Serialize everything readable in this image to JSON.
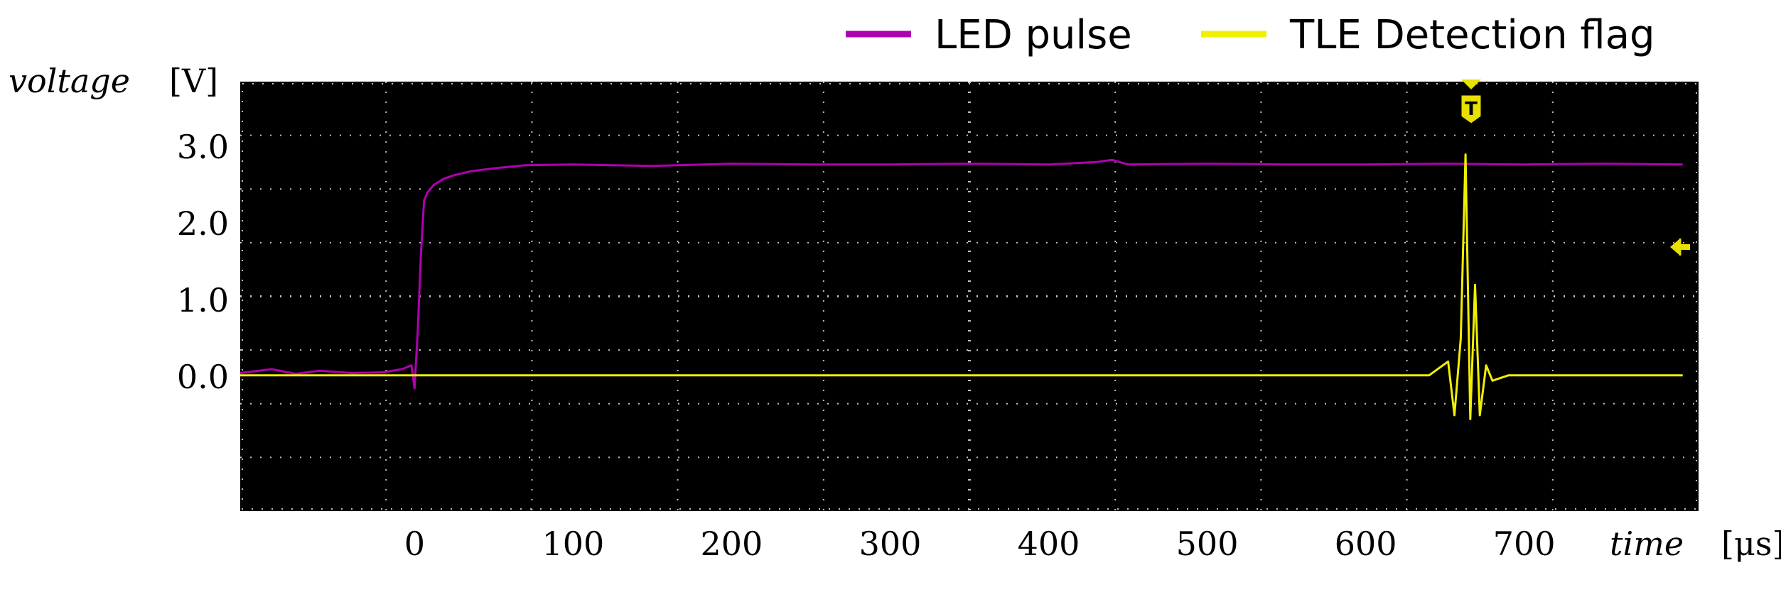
{
  "chart_data": {
    "type": "line",
    "title": "",
    "xlabel": "time",
    "xlabel_unit": "[μs]",
    "ylabel": "voltage",
    "ylabel_unit": "[V]",
    "xlim": [
      -110,
      810
    ],
    "ylim": [
      -1.75,
      3.85
    ],
    "x_ticks": [
      0,
      100,
      200,
      300,
      400,
      500,
      600,
      700
    ],
    "x_tick_labels": [
      "0",
      "100",
      "200",
      "300",
      "400",
      "500",
      "600",
      "700"
    ],
    "y_ticks": [
      0,
      1,
      2,
      3
    ],
    "y_tick_labels": [
      "0.0",
      "1.0",
      "2.0",
      "3.0"
    ],
    "grid": true,
    "background": "#000000",
    "legend_position": "top-right",
    "series": [
      {
        "name": "LED pulse",
        "color": "#b000b0",
        "x": [
          -110,
          -90,
          -75,
          -60,
          -40,
          -20,
          -8,
          -2,
          0,
          2,
          4,
          6,
          8,
          12,
          18,
          25,
          35,
          50,
          70,
          100,
          150,
          200,
          250,
          300,
          350,
          400,
          430,
          440,
          450,
          500,
          550,
          600,
          650,
          700,
          750,
          800
        ],
        "y": [
          0.05,
          0.1,
          0.04,
          0.08,
          0.05,
          0.06,
          0.1,
          0.15,
          -0.15,
          0.6,
          1.6,
          2.3,
          2.4,
          2.5,
          2.58,
          2.63,
          2.68,
          2.72,
          2.76,
          2.77,
          2.75,
          2.78,
          2.77,
          2.77,
          2.78,
          2.77,
          2.8,
          2.83,
          2.77,
          2.78,
          2.77,
          2.77,
          2.78,
          2.77,
          2.78,
          2.77
        ]
      },
      {
        "name": "TLE Detection flag",
        "color": "#f0f000",
        "x": [
          -110,
          0,
          100,
          200,
          300,
          400,
          500,
          600,
          640,
          652,
          656,
          660,
          663,
          666,
          669,
          672,
          676,
          680,
          690,
          700,
          800
        ],
        "y": [
          0.02,
          0.02,
          0.02,
          0.02,
          0.02,
          0.02,
          0.02,
          0.02,
          0.02,
          0.2,
          -0.5,
          0.5,
          2.9,
          -0.55,
          1.2,
          -0.5,
          0.15,
          -0.05,
          0.02,
          0.02,
          0.02
        ]
      }
    ],
    "trigger_marker": "T"
  }
}
